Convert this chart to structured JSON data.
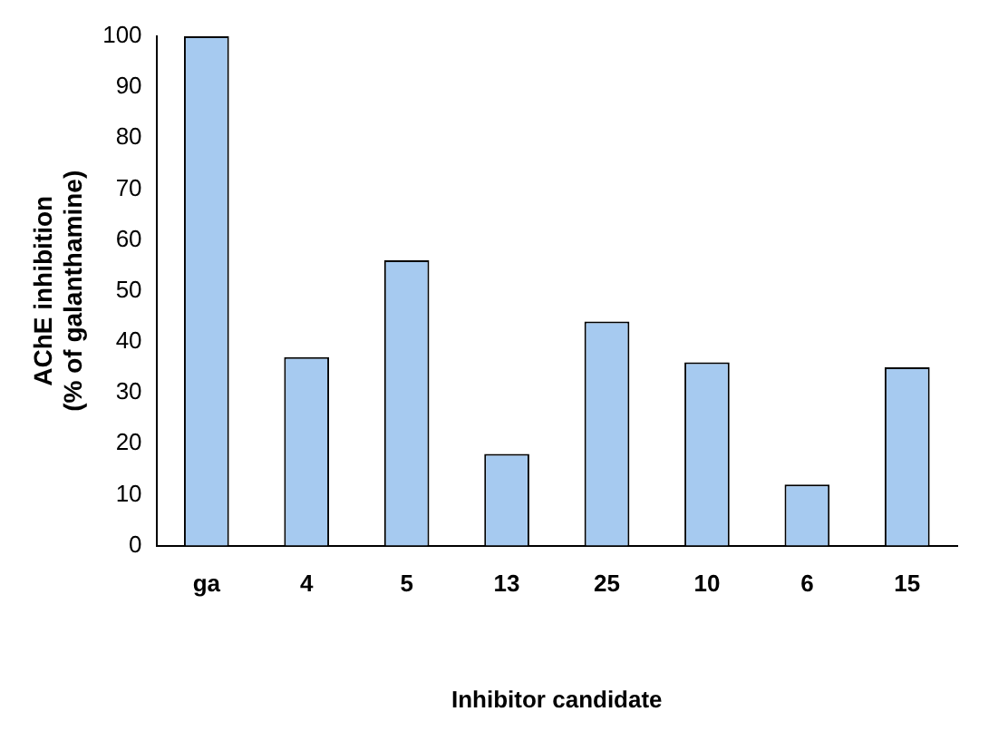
{
  "chart_data": {
    "type": "bar",
    "xlabel": "Inhibitor candidate",
    "ylabel": "AChE inhibition\n(% of galanthamine)",
    "categories": [
      "ga",
      "4",
      "5",
      "13",
      "25",
      "10",
      "6",
      "15"
    ],
    "values": [
      100,
      37,
      56,
      18,
      44,
      36,
      12,
      35
    ],
    "color": "#a6caf0",
    "ylim": [
      0,
      100
    ],
    "yticks": [
      0,
      10,
      20,
      30,
      40,
      50,
      60,
      70,
      80,
      90,
      100
    ],
    "grid": false,
    "legend": false
  }
}
